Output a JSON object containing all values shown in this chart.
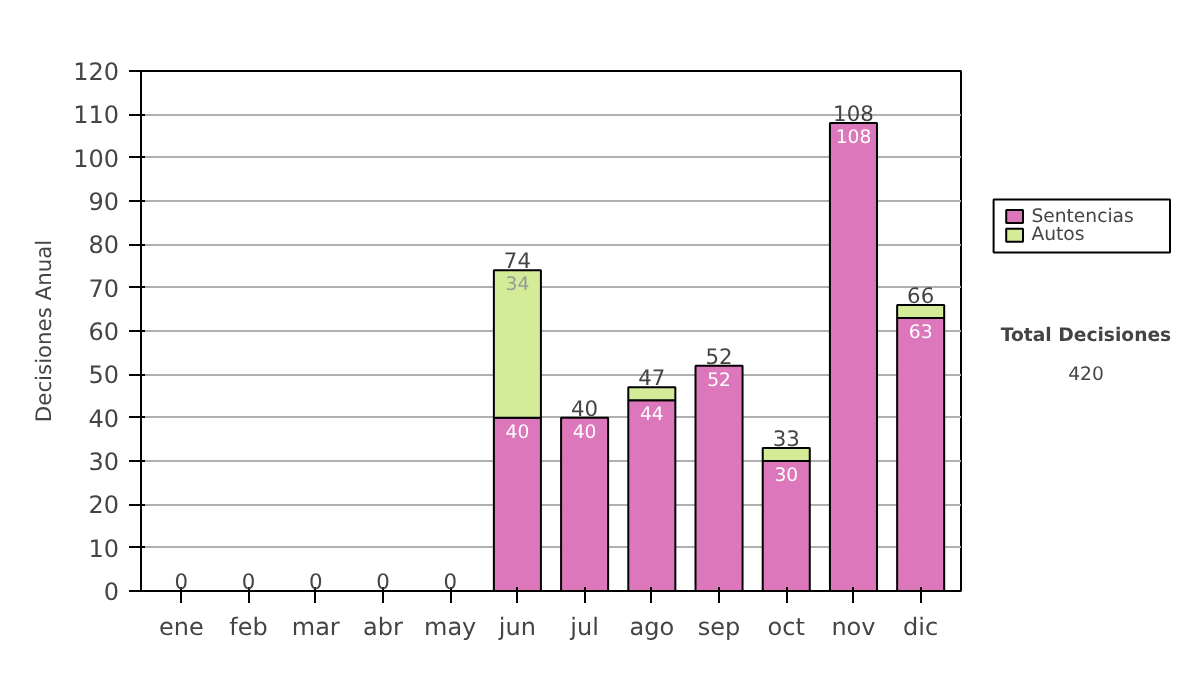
{
  "chart_data": {
    "type": "bar",
    "stacked": true,
    "ylabel": "Decisiones Anual",
    "categories": [
      "ene",
      "feb",
      "mar",
      "abr",
      "may",
      "jun",
      "jul",
      "ago",
      "sep",
      "oct",
      "nov",
      "dic"
    ],
    "series": [
      {
        "name": "Sentencias",
        "color": "#dd77bb",
        "values": [
          0,
          0,
          0,
          0,
          0,
          40,
          40,
          44,
          52,
          30,
          108,
          63
        ],
        "value_labels": [
          null,
          null,
          null,
          null,
          null,
          "40",
          "40",
          "44",
          "52",
          "30",
          "108",
          "63"
        ]
      },
      {
        "name": "Autos",
        "color": "#d4ec98",
        "values": [
          0,
          0,
          0,
          0,
          0,
          34,
          0,
          3,
          0,
          3,
          0,
          3
        ],
        "value_labels": [
          null,
          null,
          null,
          null,
          null,
          "34",
          null,
          null,
          null,
          null,
          null,
          null
        ]
      }
    ],
    "totals": [
      "0",
      "0",
      "0",
      "0",
      "0",
      "74",
      "40",
      "47",
      "52",
      "33",
      "108",
      "66"
    ],
    "ylim": [
      0,
      120
    ],
    "yticks": [
      0,
      10,
      20,
      30,
      40,
      50,
      60,
      70,
      80,
      90,
      100,
      110,
      120
    ],
    "grid": "y",
    "legend": "right",
    "annotations": [
      "Total Decisiones",
      "420"
    ]
  }
}
